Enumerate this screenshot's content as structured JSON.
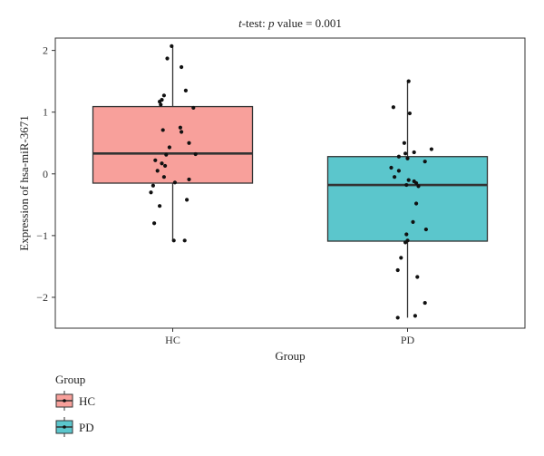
{
  "chart_data": {
    "type": "box",
    "title_prefix": "t",
    "title_rest": "-test: ",
    "title_p": "p",
    "title_tail": " value = 0.001",
    "xlabel": "Group",
    "ylabel": "Expression of hsa-miR-3671",
    "ylim": [
      -2.5,
      2.2
    ],
    "yticks": [
      2,
      1,
      0,
      -1,
      -2
    ],
    "ytick_labels": [
      "2",
      "1",
      "0",
      "−1",
      "−2"
    ],
    "categories": [
      "HC",
      "PD"
    ],
    "legend_title": "Group",
    "legend_position": "bottom-left",
    "grid": false,
    "series": [
      {
        "name": "HC",
        "color": "#F8A09B",
        "q1": -0.15,
        "median": 0.33,
        "q3": 1.09,
        "whisker_low": -1.07,
        "whisker_high": 2.06,
        "points": [
          [
            -0.01,
            2.07
          ],
          [
            -0.05,
            1.87
          ],
          [
            0.08,
            1.73
          ],
          [
            0.12,
            1.35
          ],
          [
            -0.08,
            1.27
          ],
          [
            -0.1,
            1.2
          ],
          [
            -0.12,
            1.17
          ],
          [
            -0.11,
            1.12
          ],
          [
            0.19,
            1.07
          ],
          [
            0.07,
            0.75
          ],
          [
            0.08,
            0.68
          ],
          [
            -0.09,
            0.71
          ],
          [
            0.15,
            0.5
          ],
          [
            -0.03,
            0.43
          ],
          [
            -0.06,
            0.31
          ],
          [
            0.21,
            0.32
          ],
          [
            -0.16,
            0.22
          ],
          [
            -0.1,
            0.17
          ],
          [
            -0.07,
            0.13
          ],
          [
            -0.14,
            0.05
          ],
          [
            -0.08,
            -0.05
          ],
          [
            0.15,
            -0.09
          ],
          [
            0.02,
            -0.14
          ],
          [
            -0.18,
            -0.19
          ],
          [
            -0.2,
            -0.3
          ],
          [
            0.13,
            -0.42
          ],
          [
            -0.12,
            -0.52
          ],
          [
            -0.17,
            -0.8
          ],
          [
            0.01,
            -1.08
          ],
          [
            0.11,
            -1.08
          ]
        ]
      },
      {
        "name": "PD",
        "color": "#5BC6CC",
        "q1": -1.09,
        "median": -0.18,
        "q3": 0.28,
        "whisker_low": -2.33,
        "whisker_high": 1.5,
        "points": [
          [
            0.01,
            1.5
          ],
          [
            -0.13,
            1.08
          ],
          [
            0.02,
            0.98
          ],
          [
            -0.03,
            0.5
          ],
          [
            0.06,
            0.35
          ],
          [
            -0.02,
            0.33
          ],
          [
            0.22,
            0.4
          ],
          [
            -0.08,
            0.28
          ],
          [
            0.0,
            0.25
          ],
          [
            0.16,
            0.2
          ],
          [
            -0.15,
            0.1
          ],
          [
            -0.08,
            0.05
          ],
          [
            -0.12,
            -0.05
          ],
          [
            0.01,
            -0.1
          ],
          [
            0.06,
            -0.12
          ],
          [
            0.08,
            -0.15
          ],
          [
            -0.01,
            -0.18
          ],
          [
            0.1,
            -0.2
          ],
          [
            0.08,
            -0.48
          ],
          [
            0.05,
            -0.78
          ],
          [
            -0.01,
            -0.98
          ],
          [
            0.17,
            -0.9
          ],
          [
            0.0,
            -1.08
          ],
          [
            -0.02,
            -1.11
          ],
          [
            -0.06,
            -1.36
          ],
          [
            -0.09,
            -1.56
          ],
          [
            0.09,
            -1.67
          ],
          [
            0.16,
            -2.09
          ],
          [
            0.07,
            -2.3
          ],
          [
            -0.09,
            -2.33
          ]
        ]
      }
    ]
  }
}
